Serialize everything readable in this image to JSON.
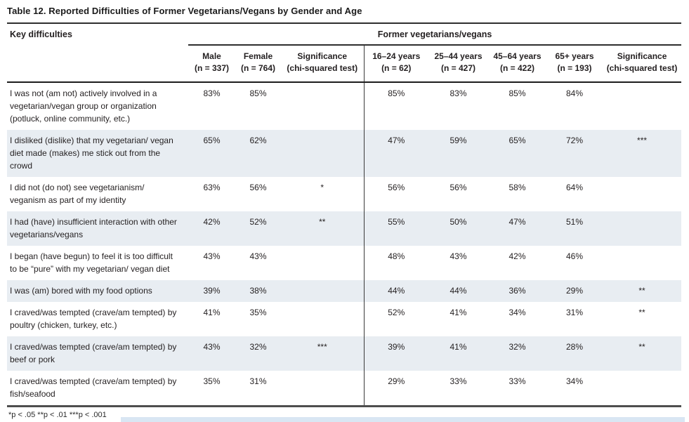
{
  "title": "Table 12. Reported Difficulties of Former Vegetarians/Vegans by Gender and Age",
  "table": {
    "row_header": "Key difficulties",
    "group_header": "Former vegetarians/vegans",
    "columns": [
      {
        "label": "Male",
        "sub": "(n = 337)"
      },
      {
        "label": "Female",
        "sub": "(n = 764)"
      },
      {
        "label": "Significance",
        "sub": "(chi-squared test)"
      },
      {
        "label": "16–24 years",
        "sub": "(n = 62)"
      },
      {
        "label": "25–44 years",
        "sub": "(n = 427)"
      },
      {
        "label": "45–64 years",
        "sub": "(n = 422)"
      },
      {
        "label": "65+ years",
        "sub": "(n = 193)"
      },
      {
        "label": "Significance",
        "sub": "(chi-squared test)"
      }
    ],
    "rows": [
      {
        "label": "I was not (am not) actively involved in a vegetarian/vegan group or organization (potluck, online community, etc.)",
        "values": [
          "83%",
          "85%",
          "",
          "85%",
          "83%",
          "85%",
          "84%",
          ""
        ],
        "shaded": false
      },
      {
        "label": "I disliked (dislike) that my vegetarian/ vegan diet made (makes) me stick out from the crowd",
        "values": [
          "65%",
          "62%",
          "",
          "47%",
          "59%",
          "65%",
          "72%",
          "***"
        ],
        "shaded": true
      },
      {
        "label": "I did not (do not) see vegetarianism/ veganism as part of my identity",
        "values": [
          "63%",
          "56%",
          "*",
          "56%",
          "56%",
          "58%",
          "64%",
          ""
        ],
        "shaded": false
      },
      {
        "label": "I had (have) insufficient interaction with other vegetarians/vegans",
        "values": [
          "42%",
          "52%",
          "**",
          "55%",
          "50%",
          "47%",
          "51%",
          ""
        ],
        "shaded": true
      },
      {
        "label": "I began (have begun) to feel it is too difficult to be “pure” with my vegetarian/ vegan diet",
        "values": [
          "43%",
          "43%",
          "",
          "48%",
          "43%",
          "42%",
          "46%",
          ""
        ],
        "shaded": false
      },
      {
        "label": "I was (am) bored with my food options",
        "values": [
          "39%",
          "38%",
          "",
          "44%",
          "44%",
          "36%",
          "29%",
          "**"
        ],
        "shaded": true
      },
      {
        "label": "I craved/was tempted (crave/am tempted) by poultry (chicken, turkey, etc.)",
        "values": [
          "41%",
          "35%",
          "",
          "52%",
          "41%",
          "34%",
          "31%",
          "**"
        ],
        "shaded": false
      },
      {
        "label": "I craved/was tempted (crave/am tempted) by beef or pork",
        "values": [
          "43%",
          "32%",
          "***",
          "39%",
          "41%",
          "32%",
          "28%",
          "**"
        ],
        "shaded": true
      },
      {
        "label": "I craved/was tempted (crave/am tempted) by fish/seafood",
        "values": [
          "35%",
          "31%",
          "",
          "29%",
          "33%",
          "33%",
          "34%",
          ""
        ],
        "shaded": false
      }
    ]
  },
  "footnote": "*p < .05 **p < .01 ***p < .001",
  "colors": {
    "row_shade": "#e8edf2",
    "rule_dark": "#2e2e2e",
    "bottom_rule": "#4e4e4e",
    "text": "#231f20",
    "highlight_bar": "#d9e6f3"
  }
}
